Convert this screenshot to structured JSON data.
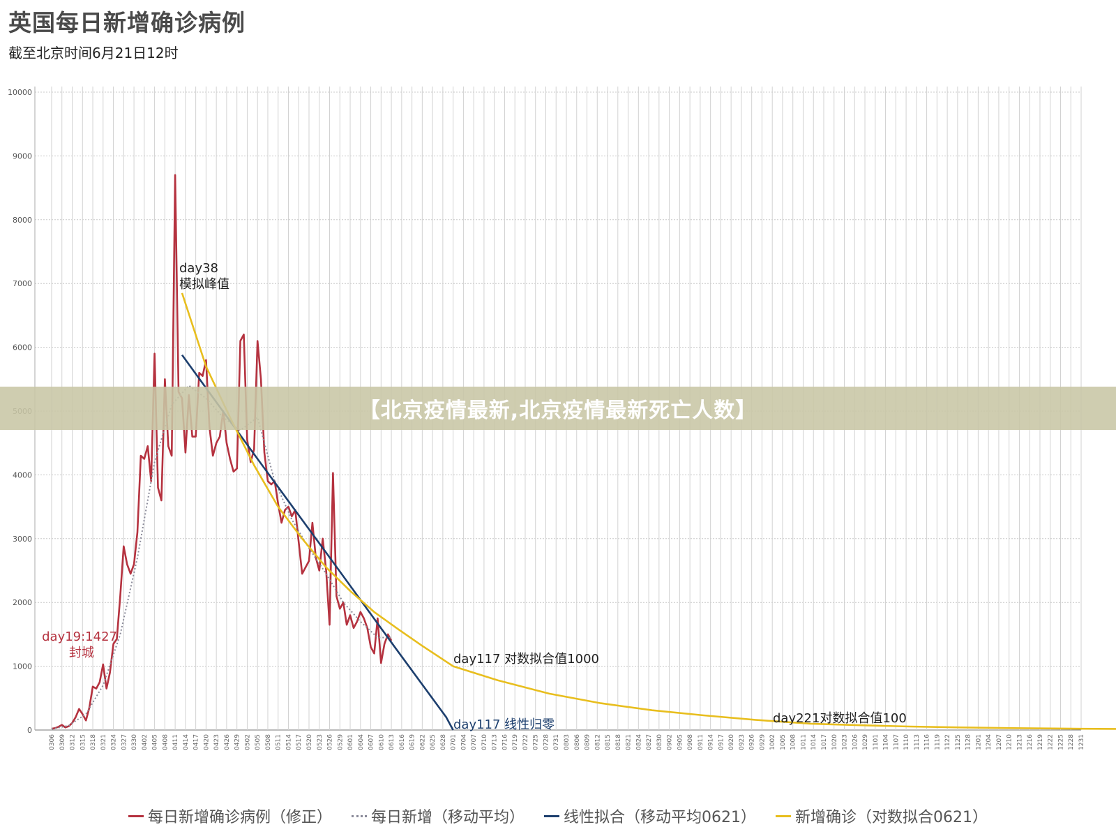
{
  "title": "英国每日新增确诊病例",
  "subtitle": "截至北京时间6月21日12时",
  "overlay_banner": "【北京疫情最新,北京疫情最新死亡人数】",
  "chart_data": {
    "type": "line",
    "ylim": [
      0,
      10000
    ],
    "y_ticks": [
      "0",
      "1000",
      "2000",
      "3000",
      "4000",
      "5000",
      "6000",
      "7000",
      "8000",
      "9000",
      "10000"
    ],
    "x_ticks": [
      "0306",
      "0309",
      "0312",
      "0315",
      "0318",
      "0321",
      "0324",
      "0327",
      "0330",
      "0402",
      "0405",
      "0408",
      "0411",
      "0414",
      "0417",
      "0420",
      "0423",
      "0426",
      "0429",
      "0502",
      "0505",
      "0508",
      "0511",
      "0514",
      "0517",
      "0520",
      "0523",
      "0526",
      "0529",
      "0601",
      "0604",
      "0607",
      "0610",
      "0613",
      "0616",
      "0619",
      "0622",
      "0625",
      "0628",
      "0701",
      "0704",
      "0707",
      "0710",
      "0713",
      "0716",
      "0719",
      "0722",
      "0725",
      "0728",
      "0731",
      "0803",
      "0806",
      "0809",
      "0812",
      "0815",
      "0818",
      "0821",
      "0824",
      "0827",
      "0830",
      "0902",
      "0905",
      "0908",
      "0911",
      "0914",
      "0917",
      "0920",
      "0923",
      "0926",
      "0929",
      "1002",
      "1005",
      "1008",
      "1011",
      "1014",
      "1017",
      "1020",
      "1023",
      "1026",
      "1029",
      "1101",
      "1104",
      "1107",
      "1110",
      "1113",
      "1116",
      "1119",
      "1122",
      "1125",
      "1128",
      "1201",
      "1204",
      "1207",
      "1210",
      "1213",
      "1216",
      "1219",
      "1222",
      "1225",
      "1228",
      "1231"
    ],
    "grid": true,
    "legend_position": "bottom",
    "series": [
      {
        "name": "每日新增确诊病例（修正）",
        "color": "#b5323f",
        "style": "solid",
        "x": [
          0,
          1,
          2,
          3,
          4,
          5,
          6,
          7,
          8,
          9,
          10,
          11,
          12,
          13,
          14,
          15,
          16,
          17,
          18,
          19,
          20,
          21,
          22,
          23,
          24,
          25,
          26,
          27,
          28,
          29,
          30,
          31,
          32,
          33,
          34,
          35,
          36,
          37,
          38,
          39,
          40,
          41,
          42,
          43,
          44,
          45,
          46,
          47,
          48,
          49,
          50,
          51,
          52,
          53,
          54,
          55,
          56,
          57,
          58,
          59,
          60,
          61,
          62,
          63,
          64,
          65,
          66,
          67,
          68,
          69,
          70,
          71,
          72,
          73,
          74,
          75,
          76,
          77,
          78,
          79,
          80,
          81,
          82,
          83,
          84,
          85,
          86,
          87,
          88,
          89,
          90,
          91,
          92,
          93,
          94,
          95,
          96,
          97,
          98,
          99
        ],
        "y": [
          20,
          30,
          50,
          80,
          40,
          60,
          110,
          200,
          330,
          250,
          150,
          350,
          680,
          650,
          750,
          1030,
          650,
          900,
          1350,
          1427,
          2100,
          2880,
          2600,
          2450,
          2600,
          3100,
          4300,
          4250,
          4450,
          3900,
          5900,
          3800,
          3600,
          5500,
          4450,
          4300,
          8700,
          5300,
          5200,
          4350,
          5250,
          4600,
          4600,
          5600,
          5550,
          5800,
          4750,
          4300,
          4500,
          4600,
          5000,
          4500,
          4250,
          4050,
          4100,
          6100,
          6200,
          4550,
          4200,
          4400,
          6100,
          5500,
          4350,
          3900,
          3850,
          3900,
          3550,
          3250,
          3450,
          3500,
          3350,
          3450,
          2950,
          2450,
          2550,
          2650,
          3250,
          2700,
          2500,
          3000,
          2500,
          1650,
          4030,
          2100,
          1900,
          2000,
          1650,
          1800,
          1600,
          1700,
          1850,
          1750,
          1600,
          1300,
          1200,
          1750,
          1050,
          1350,
          1500,
          1400
        ]
      },
      {
        "name": "每日新增（移动平均）",
        "color": "#8a8a99",
        "style": "dotted",
        "x": [
          0,
          5,
          10,
          15,
          20,
          25,
          30,
          35,
          40,
          45,
          50,
          55,
          60,
          65,
          70,
          75,
          80,
          85,
          90,
          95,
          99
        ],
        "y": [
          15,
          70,
          250,
          700,
          1500,
          2700,
          4200,
          5100,
          5400,
          5200,
          4900,
          4700,
          4900,
          3900,
          3300,
          2850,
          2450,
          2000,
          1700,
          1450,
          1450
        ]
      },
      {
        "name": "线性拟合（移动平均0621）",
        "color": "#1d3f6e",
        "style": "solid",
        "x": [
          38,
          60,
          80,
          100,
          115,
          117
        ],
        "y": [
          5880,
          4250,
          2780,
          1300,
          200,
          0
        ]
      },
      {
        "name": "新增确诊（对数拟合0621）",
        "color": "#e8be1e",
        "style": "solid",
        "x": [
          38,
          45,
          52,
          59,
          66,
          73,
          80,
          87,
          94,
          101,
          108,
          117,
          130,
          145,
          160,
          175,
          190,
          205,
          221,
          235,
          250,
          265,
          280,
          300,
          320,
          340,
          360
        ],
        "y": [
          6850,
          5700,
          4900,
          4150,
          3500,
          3000,
          2550,
          2180,
          1850,
          1580,
          1320,
          1000,
          780,
          570,
          420,
          310,
          230,
          160,
          100,
          75,
          55,
          40,
          30,
          20,
          14,
          10,
          7
        ]
      }
    ],
    "annotations": [
      {
        "text": "day38",
        "color": "#222222"
      },
      {
        "text": "模拟峰值",
        "color": "#222222"
      },
      {
        "text": "day19:1427",
        "color": "#b5323f"
      },
      {
        "text": "封城",
        "color": "#b5323f"
      },
      {
        "text": "day117 对数拟合值1000",
        "color": "#222222"
      },
      {
        "text": "day117 线性归零",
        "color": "#1d3f6e"
      },
      {
        "text": "day221对数拟合值100",
        "color": "#222222"
      }
    ]
  }
}
